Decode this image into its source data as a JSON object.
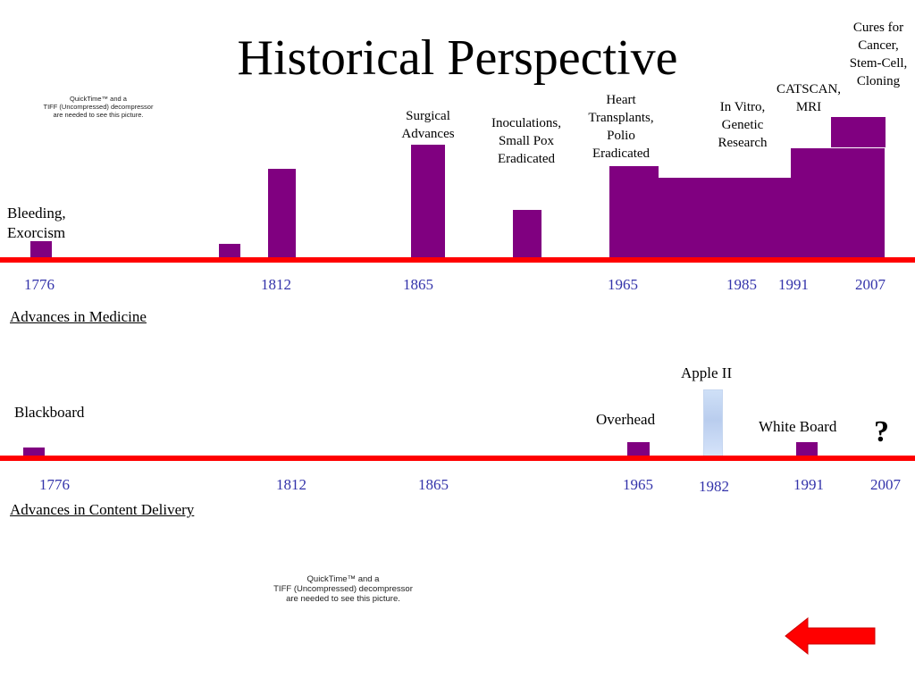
{
  "title": "Historical Perspective",
  "quicktime_notice": {
    "line1": "QuickTime™ and a",
    "line2": "TIFF (Uncompressed) decompressor",
    "line3": "are needed to see this picture."
  },
  "medicine": {
    "section_label": "Advances in Medicine",
    "labels": {
      "bleeding_l1": "Bleeding,",
      "bleeding_l2": "Exorcism",
      "surgical_l1": "Surgical",
      "surgical_l2": "Advances",
      "inoc_l1": "Inoculations,",
      "inoc_l2": "Small Pox",
      "inoc_l3": "Eradicated",
      "heart_l1": "Heart",
      "heart_l2": "Transplants,",
      "heart_l3": "Polio",
      "heart_l4": "Eradicated",
      "invitro_l1": "In Vitro,",
      "invitro_l2": "Genetic",
      "invitro_l3": "Research",
      "catscan_l1": "CATSCAN,",
      "catscan_l2": "MRI",
      "cures_l1": "Cures for",
      "cures_l2": "Cancer,",
      "cures_l3": "Stem-Cell,",
      "cures_l4": "Cloning"
    },
    "years": [
      "1776",
      "1812",
      "1865",
      "1965",
      "1985",
      "1991",
      "2007"
    ]
  },
  "delivery": {
    "section_label": "Advances in Content Delivery",
    "labels": {
      "blackboard": "Blackboard",
      "overhead": "Overhead",
      "apple": "Apple II",
      "whiteboard": "White Board",
      "unknown": "?"
    },
    "years": [
      "1776",
      "1812",
      "1865",
      "1965",
      "1982",
      "1991",
      "2007"
    ]
  },
  "colors": {
    "bar": "#800080",
    "axis": "#ff0000",
    "year_text": "#3333aa",
    "arrow": "#ff0000"
  },
  "icons": {
    "back_arrow": "left-arrow-icon"
  }
}
